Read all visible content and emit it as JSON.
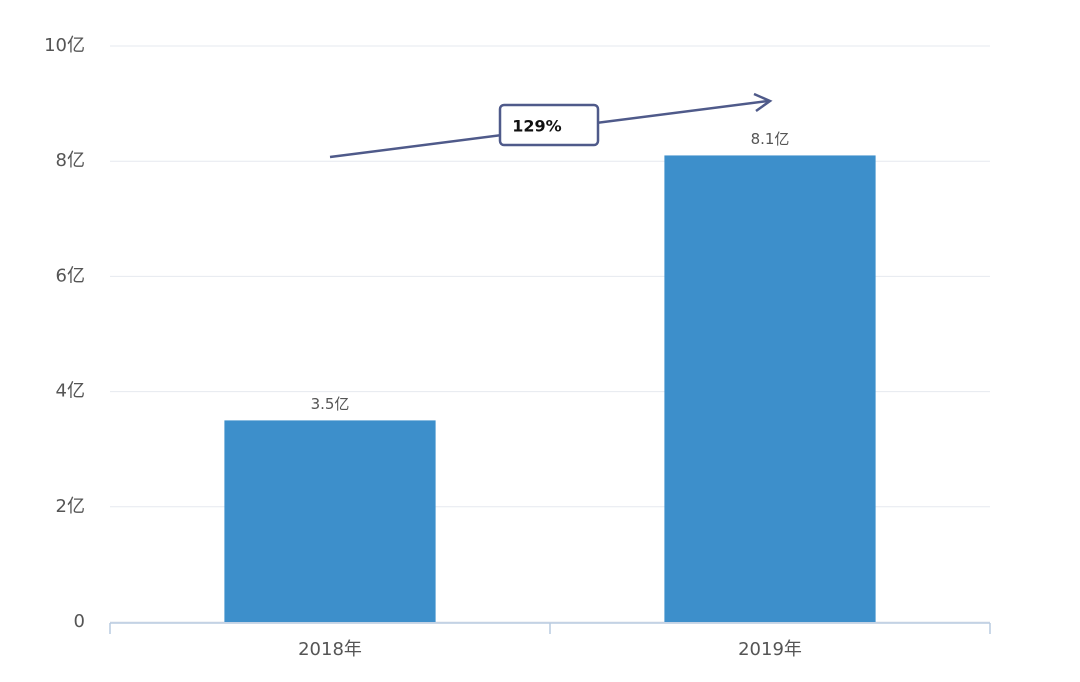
{
  "chart_data": {
    "type": "bar",
    "categories": [
      "2018年",
      "2019年"
    ],
    "values": [
      3.5,
      8.1
    ],
    "value_labels": [
      "3.5亿",
      "8.1亿"
    ],
    "color": "#3d8fcb",
    "ylim": [
      0,
      10
    ],
    "yticks": [
      0,
      {
        "value": 2,
        "label": "2亿"
      },
      {
        "value": 4,
        "label": "4亿"
      },
      {
        "value": 6,
        "label": "6亿"
      },
      {
        "value": 8,
        "label": "8亿"
      },
      {
        "value": 10,
        "label": "10亿"
      }
    ],
    "grid": true,
    "annotation": "129%"
  }
}
